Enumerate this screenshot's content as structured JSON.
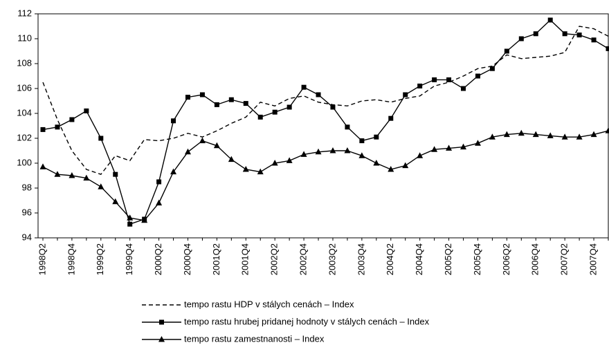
{
  "chart_data": {
    "type": "line",
    "categories": [
      "1998Q2",
      null,
      "1998Q4",
      null,
      "1999Q2",
      null,
      "1999Q4",
      null,
      "2000Q2",
      null,
      "2000Q4",
      null,
      "2001Q2",
      null,
      "2001Q4",
      null,
      "2002Q2",
      null,
      "2002Q4",
      null,
      "2003Q2",
      null,
      "2003Q4",
      null,
      "2004Q2",
      null,
      "2004Q4",
      null,
      "2005Q2",
      null,
      "2005Q4",
      null,
      "2006Q2",
      null,
      "2006Q4",
      null,
      "2007Q2",
      null,
      "2007Q4",
      null
    ],
    "series": [
      {
        "name": "tempo rastu HDP v stálych cenách – Index",
        "color": "#000000",
        "style": "dashed",
        "marker": "none",
        "values": [
          106.5,
          103.5,
          101.0,
          99.5,
          99.1,
          100.6,
          100.2,
          101.9,
          101.8,
          102.0,
          102.4,
          102.1,
          102.6,
          103.2,
          103.7,
          104.9,
          104.6,
          105.2,
          105.4,
          104.9,
          104.7,
          104.6,
          105.0,
          105.1,
          104.9,
          105.2,
          105.4,
          106.2,
          106.5,
          107.0,
          107.6,
          107.8,
          108.7,
          108.4,
          108.5,
          108.6,
          108.9,
          111.0,
          110.8,
          110.2
        ]
      },
      {
        "name": "tempo rastu hrubej pridanej hodnoty v stálych cenách – Index",
        "color": "#000000",
        "style": "solid",
        "marker": "square",
        "values": [
          102.7,
          102.9,
          103.5,
          104.2,
          102.0,
          99.1,
          95.1,
          95.5,
          98.5,
          103.4,
          105.3,
          105.5,
          104.7,
          105.1,
          104.8,
          103.7,
          104.1,
          104.5,
          106.1,
          105.5,
          104.5,
          102.9,
          101.8,
          102.1,
          103.6,
          105.5,
          106.2,
          106.7,
          106.7,
          106.0,
          107.0,
          107.6,
          109.0,
          110.0,
          110.4,
          111.5,
          110.4,
          110.3,
          109.9,
          109.2
        ]
      },
      {
        "name": "tempo rastu zamestnanosti – Index",
        "color": "#000000",
        "style": "solid",
        "marker": "triangle",
        "values": [
          99.7,
          99.1,
          99.0,
          98.8,
          98.1,
          96.9,
          95.6,
          95.4,
          96.8,
          99.3,
          100.9,
          101.8,
          101.4,
          100.3,
          99.5,
          99.3,
          100.0,
          100.2,
          100.7,
          100.9,
          101.0,
          101.0,
          100.6,
          100.0,
          99.5,
          99.8,
          100.6,
          101.1,
          101.2,
          101.3,
          101.6,
          102.1,
          102.3,
          102.4,
          102.3,
          102.2,
          102.1,
          102.1,
          102.3,
          102.6
        ]
      }
    ],
    "ylim": [
      94,
      112
    ],
    "yticks": [
      94,
      96,
      98,
      100,
      102,
      104,
      106,
      108,
      110,
      112
    ]
  }
}
